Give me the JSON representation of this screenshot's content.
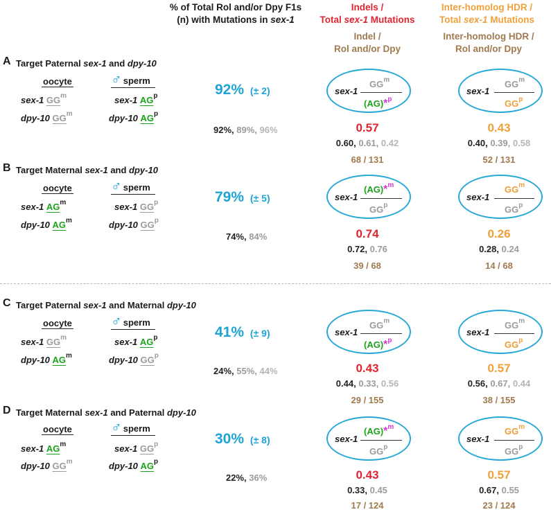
{
  "headers": {
    "col_pct_line1": "% of Total Rol and/or Dpy F1s",
    "col_pct_line2_pre": "(n) with Mutations in ",
    "col_pct_line2_gene": "sex-1",
    "indels_line1": "Indels /",
    "indels_line2_pre": "Total ",
    "indels_line2_gene": "sex-1",
    "indels_line2_post": " Mutations",
    "indels_sub1": "Indel /",
    "indels_sub2": "Rol and/or Dpy",
    "hdr_line1": "Inter-homolog HDR /",
    "hdr_line2_pre": "Total ",
    "hdr_line2_gene": "sex-1",
    "hdr_line2_post": " Mutations",
    "hdr_sub1": "Inter-homolog HDR /",
    "hdr_sub2": "Rol and/or Dpy"
  },
  "common": {
    "oocyte": "oocyte",
    "sperm": "sperm",
    "male_symbol": "♂",
    "sex1": "sex-1",
    "dpy10": "dpy-10",
    "GG": "GG",
    "AG": "AG",
    "AGp": "(AG)",
    "star": "*",
    "m": "m",
    "p": "p",
    "sep": ", "
  },
  "panels": [
    {
      "letter": "A",
      "title_pre": "Target Paternal ",
      "title_g1": "sex-1",
      "title_mid": " and ",
      "title_g2": "dpy-10",
      "title_post": "",
      "pct": "92%",
      "sd": "(± 2)",
      "reps": [
        "92%",
        "89%",
        "96%"
      ],
      "indel_ratio": "0.57",
      "indel_reps": [
        "0.60",
        "0.61",
        "0.42"
      ],
      "indel_counts": "68 / 131",
      "hdr_ratio": "0.43",
      "hdr_reps": [
        "0.40",
        "0.39",
        "0.58"
      ],
      "hdr_counts": "52 / 131"
    },
    {
      "letter": "B",
      "title_pre": "Target Maternal ",
      "title_g1": "sex-1",
      "title_mid": " and ",
      "title_g2": "dpy-10",
      "title_post": "",
      "pct": "79%",
      "sd": "(± 5)",
      "reps": [
        "74%",
        "84%"
      ],
      "indel_ratio": "0.74",
      "indel_reps": [
        "0.72",
        "0.76"
      ],
      "indel_counts": "39 / 68",
      "hdr_ratio": "0.26",
      "hdr_reps": [
        "0.28",
        "0.24"
      ],
      "hdr_counts": "14 / 68"
    },
    {
      "letter": "C",
      "title_pre": "Target Paternal ",
      "title_g1": "sex-1",
      "title_mid": " and Maternal ",
      "title_g2": "dpy-10",
      "title_post": "",
      "pct": "41%",
      "sd": "(± 9)",
      "reps": [
        "24%",
        "55%",
        "44%"
      ],
      "indel_ratio": "0.43",
      "indel_reps": [
        "0.44",
        "0.33",
        "0.56"
      ],
      "indel_counts": "29 / 155",
      "hdr_ratio": "0.57",
      "hdr_reps": [
        "0.56",
        "0.67",
        "0.44"
      ],
      "hdr_counts": "38 / 155"
    },
    {
      "letter": "D",
      "title_pre": "Target Maternal ",
      "title_g1": "sex-1",
      "title_mid": " and Paternal ",
      "title_g2": "dpy-10",
      "title_post": "",
      "pct": "30%",
      "sd": "(± 8)",
      "reps": [
        "22%",
        "36%"
      ],
      "indel_ratio": "0.43",
      "indel_reps": [
        "0.33",
        "0.45"
      ],
      "indel_counts": "17 / 124",
      "hdr_ratio": "0.57",
      "hdr_reps": [
        "0.67",
        "0.55"
      ],
      "hdr_counts": "23 / 124"
    }
  ],
  "colors": {
    "indel_red": "#e0242f",
    "hdr_orange": "#f0a03a",
    "count_tan": "#a07a4e",
    "pct_cyan": "#1ea3d6",
    "allele_gray": "#9b9b9b",
    "allele_green": "#1aa31a",
    "indel_star_magenta": "#d23ad2"
  }
}
